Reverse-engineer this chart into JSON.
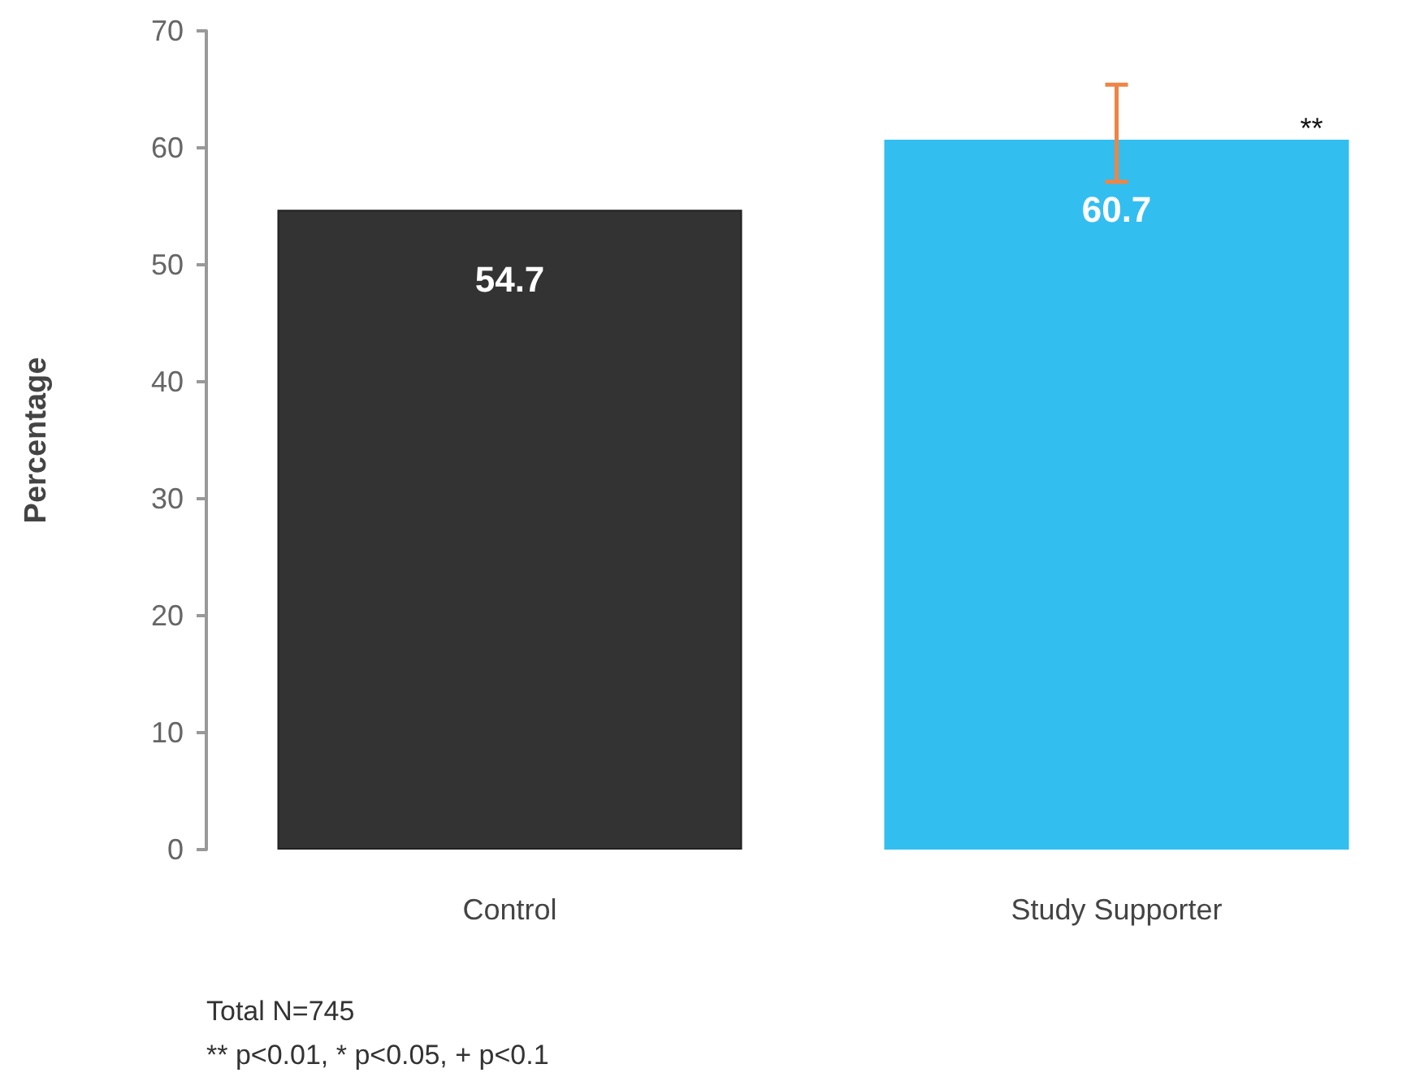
{
  "chart_data": {
    "type": "bar",
    "ylabel": "Percentage",
    "categories": [
      "Control",
      "Study Supporter"
    ],
    "values": [
      54.7,
      60.7
    ],
    "colors": [
      "#333333",
      "#33bef0"
    ],
    "errors": [
      null,
      [
        57.1,
        65.4
      ]
    ],
    "ylim": [
      0,
      70
    ],
    "yticks": [
      0,
      10,
      20,
      30,
      40,
      50,
      60,
      70
    ],
    "grid": false,
    "data_labels": true,
    "annotations": [
      "**",
      "Total N=745",
      "** p<0.01, * p<0.05, + p<0.1"
    ]
  }
}
